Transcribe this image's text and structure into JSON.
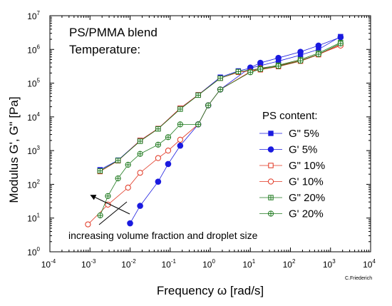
{
  "chart_data": {
    "type": "line",
    "title": "",
    "annotation_top": [
      "PS/PMMA blend",
      "Temperature:"
    ],
    "xlabel": "Frequency ω [rad/s]",
    "ylabel": "Modulus G', G\" [Pa]",
    "x_scale": "log",
    "y_scale": "log",
    "xlim": [
      0.0001,
      10000
    ],
    "ylim": [
      1,
      10000000
    ],
    "x_ticks": [
      {
        "base": "10",
        "exp": "-4"
      },
      {
        "base": "10",
        "exp": "-3"
      },
      {
        "base": "10",
        "exp": "-2"
      },
      {
        "base": "10",
        "exp": "-1"
      },
      {
        "base": "10",
        "exp": "0"
      },
      {
        "base": "10",
        "exp": "1"
      },
      {
        "base": "10",
        "exp": "2"
      },
      {
        "base": "10",
        "exp": "3"
      },
      {
        "base": "10",
        "exp": "4"
      }
    ],
    "y_ticks": [
      {
        "base": "10",
        "exp": "0"
      },
      {
        "base": "10",
        "exp": "1"
      },
      {
        "base": "10",
        "exp": "2"
      },
      {
        "base": "10",
        "exp": "3"
      },
      {
        "base": "10",
        "exp": "4"
      },
      {
        "base": "10",
        "exp": "5"
      },
      {
        "base": "10",
        "exp": "6"
      },
      {
        "base": "10",
        "exp": "7"
      }
    ],
    "grid": false,
    "legend_title": "PS content:",
    "legend_position": "right",
    "arrow_annotation": "increasing volume fraction and droplet size",
    "credit": "C.Friederich",
    "series": [
      {
        "name": "G\" 5%",
        "color": "#1a1adf",
        "marker": "square-filled",
        "x": [
          0.00178,
          0.00501,
          0.0178,
          0.0501,
          0.178,
          0.501,
          1.78,
          5.01,
          17.8,
          50.1,
          178,
          501,
          1780
        ],
        "y": [
          270,
          520,
          2000,
          4500,
          18000,
          45000,
          150000,
          230000,
          330000,
          450000,
          680000,
          1000000,
          2400000
        ]
      },
      {
        "name": "G' 5%",
        "color": "#1a1adf",
        "marker": "circle-filled",
        "x": [
          0.01,
          0.0178,
          0.0501,
          0.0891,
          0.178,
          0.501,
          0.891,
          1.78,
          10,
          17.8,
          50.1,
          178,
          501,
          1780
        ],
        "y": [
          7,
          23,
          120,
          400,
          1400,
          6000,
          22000,
          65000,
          290000,
          400000,
          560000,
          850000,
          1300000,
          2300000
        ]
      },
      {
        "name": "G\" 10%",
        "color": "#e0321e",
        "marker": "square-open",
        "x": [
          0.00178,
          0.00501,
          0.0178,
          0.0501,
          0.178,
          0.501,
          1.78,
          5.01,
          17.8,
          50.1,
          178,
          501,
          1780
        ],
        "y": [
          240,
          500,
          2000,
          4500,
          18000,
          45000,
          140000,
          210000,
          250000,
          310000,
          450000,
          700000,
          1400000
        ]
      },
      {
        "name": "G' 10%",
        "color": "#e0321e",
        "marker": "circle-open",
        "x": [
          0.00089,
          0.0028,
          0.0089,
          0.0178,
          0.0501,
          0.0891,
          0.178,
          0.501,
          0.891,
          1.78,
          10,
          17.8,
          50.1,
          178,
          501,
          1780
        ],
        "y": [
          6.5,
          25,
          80,
          220,
          600,
          1000,
          2100,
          6000,
          22000,
          65000,
          220000,
          280000,
          330000,
          470000,
          720000,
          1300000
        ]
      },
      {
        "name": "G\" 20%",
        "color": "#1f7a1f",
        "marker": "square-cross",
        "x": [
          0.00178,
          0.00501,
          0.0178,
          0.0501,
          0.178,
          0.501,
          1.78,
          5.01,
          17.8,
          50.1,
          178,
          501,
          1780
        ],
        "y": [
          250,
          510,
          1900,
          4400,
          17000,
          44000,
          140000,
          220000,
          270000,
          340000,
          500000,
          780000,
          1600000
        ]
      },
      {
        "name": "G' 20%",
        "color": "#1f7a1f",
        "marker": "circle-cross",
        "x": [
          0.0018,
          0.0028,
          0.005,
          0.0089,
          0.0178,
          0.0501,
          0.0891,
          0.178,
          0.501,
          0.891,
          1.78,
          10,
          17.8,
          50.1,
          178,
          501,
          1780
        ],
        "y": [
          12,
          45,
          150,
          380,
          800,
          1500,
          2500,
          6000,
          6000,
          22000,
          65000,
          210000,
          260000,
          320000,
          460000,
          720000,
          1500000
        ]
      }
    ]
  }
}
